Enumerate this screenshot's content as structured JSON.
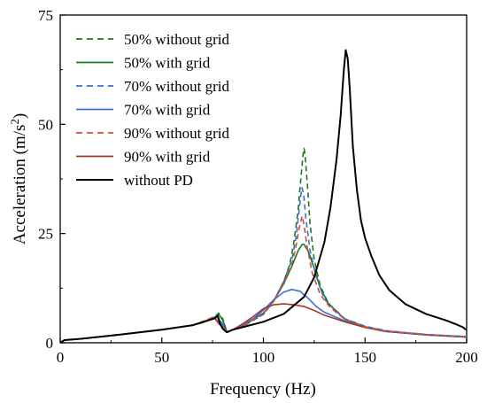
{
  "chart_data": {
    "type": "line",
    "xlabel": "Frequency (Hz)",
    "ylabel_base": "Acceleration (m/s",
    "ylabel_sup": "2",
    "ylabel_tail": ")",
    "xlim": [
      0,
      200
    ],
    "ylim": [
      0,
      75
    ],
    "xticks": [
      0,
      50,
      100,
      150,
      200
    ],
    "yticks": [
      0,
      25,
      50,
      75
    ],
    "grid": false,
    "legend_position": "top-left",
    "series": [
      {
        "name": "50% without grid",
        "color": "#1a7a1a",
        "dash": true,
        "points": [
          [
            0,
            0
          ],
          [
            2,
            0.6
          ],
          [
            10,
            0.9
          ],
          [
            30,
            1.9
          ],
          [
            50,
            3.0
          ],
          [
            65,
            4.0
          ],
          [
            72,
            5.2
          ],
          [
            76,
            6.0
          ],
          [
            78,
            6.8
          ],
          [
            80,
            5.5
          ],
          [
            82,
            2.5
          ],
          [
            85,
            3.0
          ],
          [
            90,
            3.8
          ],
          [
            100,
            6.5
          ],
          [
            105,
            9.5
          ],
          [
            110,
            14
          ],
          [
            113,
            18
          ],
          [
            115,
            23
          ],
          [
            117,
            30
          ],
          [
            118.5,
            38
          ],
          [
            119.5,
            43
          ],
          [
            120,
            44.5
          ],
          [
            120.5,
            43
          ],
          [
            121.5,
            37
          ],
          [
            123,
            27
          ],
          [
            125,
            19
          ],
          [
            128,
            13
          ],
          [
            132,
            9
          ],
          [
            140,
            5.5
          ],
          [
            150,
            3.7
          ],
          [
            160,
            2.7
          ],
          [
            180,
            1.9
          ],
          [
            200,
            1.4
          ]
        ]
      },
      {
        "name": "50% with grid",
        "color": "#1a7a1a",
        "dash": false,
        "points": [
          [
            0,
            0
          ],
          [
            2,
            0.6
          ],
          [
            10,
            0.9
          ],
          [
            30,
            1.9
          ],
          [
            50,
            3.0
          ],
          [
            65,
            4.0
          ],
          [
            72,
            5.1
          ],
          [
            76,
            5.8
          ],
          [
            78,
            6.5
          ],
          [
            80,
            5.2
          ],
          [
            82,
            2.5
          ],
          [
            85,
            3.0
          ],
          [
            90,
            3.9
          ],
          [
            100,
            6.8
          ],
          [
            105,
            9.5
          ],
          [
            110,
            13.5
          ],
          [
            114,
            17.5
          ],
          [
            117,
            21
          ],
          [
            119,
            22.5
          ],
          [
            120,
            22.5
          ],
          [
            122,
            21
          ],
          [
            125,
            17
          ],
          [
            128,
            12.5
          ],
          [
            132,
            9
          ],
          [
            140,
            5.4
          ],
          [
            150,
            3.6
          ],
          [
            160,
            2.6
          ],
          [
            180,
            1.8
          ],
          [
            200,
            1.3
          ]
        ]
      },
      {
        "name": "70% without grid",
        "color": "#3a6fd8",
        "dash": true,
        "points": [
          [
            0,
            0
          ],
          [
            2,
            0.6
          ],
          [
            10,
            0.9
          ],
          [
            30,
            1.9
          ],
          [
            50,
            3.0
          ],
          [
            65,
            4.0
          ],
          [
            72,
            5.0
          ],
          [
            75,
            5.8
          ],
          [
            77,
            6.3
          ],
          [
            79,
            5.0
          ],
          [
            82,
            2.5
          ],
          [
            85,
            3.0
          ],
          [
            90,
            4.0
          ],
          [
            100,
            6.8
          ],
          [
            105,
            9.5
          ],
          [
            110,
            14
          ],
          [
            114,
            19
          ],
          [
            116,
            24
          ],
          [
            117.5,
            30
          ],
          [
            118.5,
            34
          ],
          [
            119,
            35.5
          ],
          [
            119.8,
            34
          ],
          [
            121,
            28
          ],
          [
            123,
            21
          ],
          [
            126,
            15
          ],
          [
            130,
            10
          ],
          [
            135,
            7.5
          ],
          [
            140,
            5.5
          ],
          [
            150,
            3.8
          ],
          [
            160,
            2.8
          ],
          [
            180,
            1.9
          ],
          [
            200,
            1.4
          ]
        ]
      },
      {
        "name": "70% with grid",
        "color": "#3a6fd8",
        "dash": false,
        "points": [
          [
            0,
            0
          ],
          [
            2,
            0.6
          ],
          [
            10,
            0.9
          ],
          [
            30,
            1.9
          ],
          [
            50,
            3.0
          ],
          [
            65,
            4.0
          ],
          [
            72,
            5.0
          ],
          [
            75,
            5.7
          ],
          [
            77,
            6.1
          ],
          [
            79,
            4.8
          ],
          [
            82,
            2.5
          ],
          [
            85,
            3.0
          ],
          [
            90,
            4.2
          ],
          [
            95,
            5.5
          ],
          [
            100,
            7.5
          ],
          [
            105,
            9.8
          ],
          [
            110,
            11.6
          ],
          [
            114,
            12.2
          ],
          [
            118,
            11.8
          ],
          [
            122,
            10.2
          ],
          [
            126,
            8.3
          ],
          [
            130,
            7.0
          ],
          [
            140,
            5.0
          ],
          [
            150,
            3.6
          ],
          [
            160,
            2.7
          ],
          [
            180,
            1.8
          ],
          [
            200,
            1.3
          ]
        ]
      },
      {
        "name": "90% without grid",
        "color": "#d84a35",
        "dash": true,
        "points": [
          [
            0,
            0
          ],
          [
            2,
            0.6
          ],
          [
            10,
            0.9
          ],
          [
            30,
            1.9
          ],
          [
            50,
            3.0
          ],
          [
            65,
            4.0
          ],
          [
            70,
            4.8
          ],
          [
            74,
            5.6
          ],
          [
            76,
            5.9
          ],
          [
            78,
            4.6
          ],
          [
            82,
            2.5
          ],
          [
            85,
            3.0
          ],
          [
            90,
            4.0
          ],
          [
            100,
            6.5
          ],
          [
            105,
            9.5
          ],
          [
            110,
            13.5
          ],
          [
            114,
            18
          ],
          [
            116,
            22
          ],
          [
            117.5,
            26
          ],
          [
            118.5,
            28
          ],
          [
            119,
            29
          ],
          [
            120,
            27
          ],
          [
            121.5,
            22
          ],
          [
            124,
            16
          ],
          [
            128,
            11
          ],
          [
            133,
            8
          ],
          [
            140,
            5.4
          ],
          [
            150,
            3.7
          ],
          [
            160,
            2.7
          ],
          [
            180,
            1.9
          ],
          [
            200,
            1.4
          ]
        ]
      },
      {
        "name": "90% with grid",
        "color": "#a03a28",
        "dash": false,
        "points": [
          [
            0,
            0
          ],
          [
            2,
            0.6
          ],
          [
            10,
            0.9
          ],
          [
            30,
            1.9
          ],
          [
            50,
            3.0
          ],
          [
            65,
            4.0
          ],
          [
            70,
            4.6
          ],
          [
            74,
            5.3
          ],
          [
            76,
            5.6
          ],
          [
            78,
            4.4
          ],
          [
            82,
            2.5
          ],
          [
            85,
            3.0
          ],
          [
            90,
            4.4
          ],
          [
            95,
            6.0
          ],
          [
            100,
            7.8
          ],
          [
            105,
            8.7
          ],
          [
            110,
            8.9
          ],
          [
            115,
            8.7
          ],
          [
            120,
            8.3
          ],
          [
            125,
            7.4
          ],
          [
            130,
            6.3
          ],
          [
            140,
            4.8
          ],
          [
            150,
            3.5
          ],
          [
            160,
            2.6
          ],
          [
            180,
            1.8
          ],
          [
            200,
            1.3
          ]
        ]
      },
      {
        "name": "without PD",
        "color": "#000000",
        "dash": false,
        "points": [
          [
            0,
            0
          ],
          [
            2,
            0.6
          ],
          [
            10,
            0.9
          ],
          [
            30,
            1.9
          ],
          [
            50,
            3.0
          ],
          [
            65,
            4.0
          ],
          [
            72,
            5.0
          ],
          [
            76,
            5.6
          ],
          [
            77.5,
            6.2
          ],
          [
            78.5,
            4.5
          ],
          [
            80,
            3.2
          ],
          [
            82,
            2.4
          ],
          [
            85,
            3.0
          ],
          [
            90,
            3.6
          ],
          [
            100,
            4.8
          ],
          [
            110,
            6.6
          ],
          [
            120,
            10.5
          ],
          [
            125,
            15
          ],
          [
            130,
            23
          ],
          [
            133,
            31
          ],
          [
            136,
            42
          ],
          [
            138,
            52
          ],
          [
            139.5,
            62
          ],
          [
            140.5,
            67
          ],
          [
            141.5,
            65
          ],
          [
            142.5,
            58
          ],
          [
            144,
            45
          ],
          [
            146,
            35
          ],
          [
            148,
            28
          ],
          [
            150,
            24
          ],
          [
            153,
            20
          ],
          [
            157,
            15.5
          ],
          [
            162,
            12
          ],
          [
            170,
            8.8
          ],
          [
            180,
            6.6
          ],
          [
            190,
            5.1
          ],
          [
            195,
            4.2
          ],
          [
            198,
            3.6
          ],
          [
            200,
            2.9
          ]
        ]
      }
    ]
  }
}
